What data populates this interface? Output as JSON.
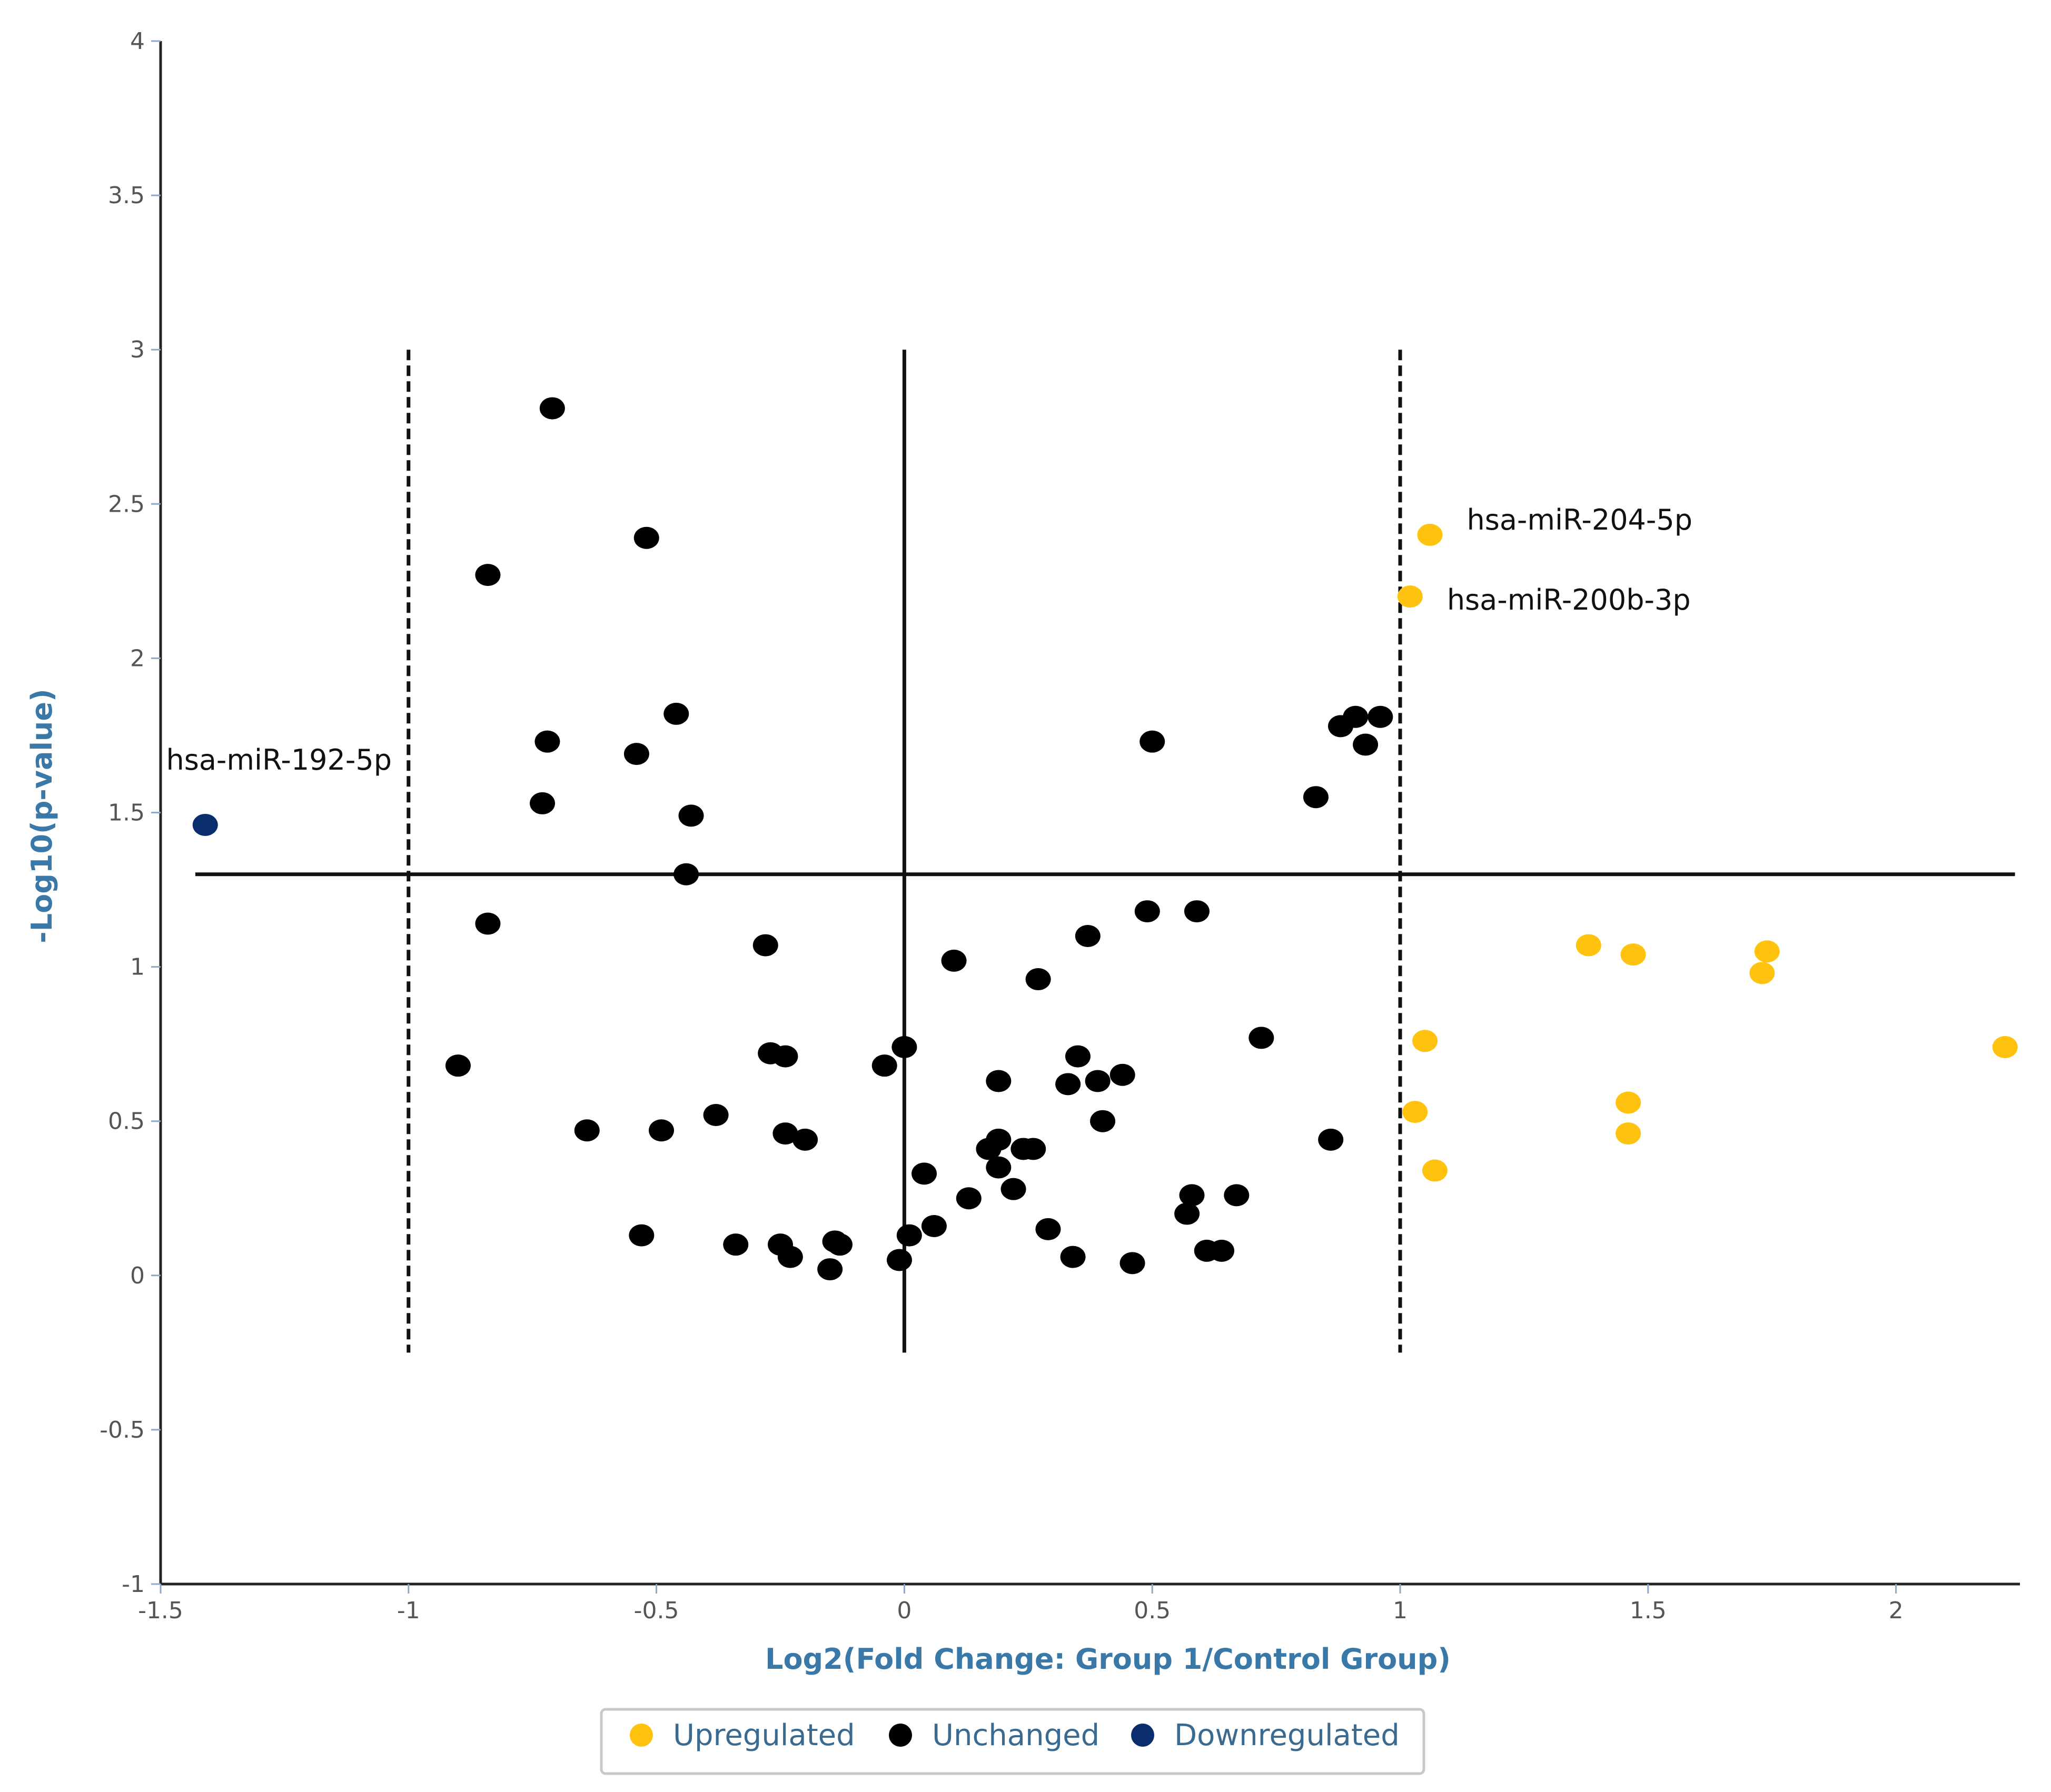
{
  "chart_data": {
    "type": "scatter",
    "xlabel": "Log2(Fold Change: Group 1/Control Group)",
    "ylabel": "-Log10(p-value)",
    "xlim": [
      -1.5,
      2.25
    ],
    "ylim": [
      -1,
      4
    ],
    "xticks": [
      -1.5,
      -1,
      -0.5,
      0,
      0.5,
      1,
      1.5,
      2
    ],
    "xtick_labels": [
      "-1.5",
      "-1",
      "-0.5",
      "0",
      "0.5",
      "1",
      "1.5",
      "2"
    ],
    "yticks": [
      -1,
      -0.5,
      0,
      0.5,
      1,
      1.5,
      2,
      2.5,
      3,
      3.5,
      4
    ],
    "ytick_labels": [
      "-1",
      "-0.5",
      "0",
      "0.5",
      "1",
      "1.5",
      "2",
      "2.5",
      "3",
      "3.5",
      "4"
    ],
    "grid": false,
    "legend_position": "bottom-center",
    "reference_lines": {
      "vertical_dashed": [
        -1,
        1
      ],
      "vertical_solid": [
        0
      ],
      "horizontal_solid": [
        1.3
      ],
      "vertical_y_range": [
        -0.25,
        3
      ]
    },
    "series": [
      {
        "name": "Upregulated",
        "color": "#FFC20E",
        "points": [
          [
            1.06,
            2.4
          ],
          [
            1.02,
            2.2
          ],
          [
            1.38,
            1.07
          ],
          [
            1.47,
            1.04
          ],
          [
            1.74,
            1.05
          ],
          [
            1.73,
            0.98
          ],
          [
            2.22,
            0.74
          ],
          [
            1.05,
            0.76
          ],
          [
            1.46,
            0.56
          ],
          [
            1.46,
            0.46
          ],
          [
            1.03,
            0.53
          ],
          [
            1.07,
            0.34
          ]
        ]
      },
      {
        "name": "Unchanged",
        "color": "#000000",
        "points": [
          [
            -0.71,
            2.81
          ],
          [
            -0.52,
            2.39
          ],
          [
            -0.84,
            2.27
          ],
          [
            -0.46,
            1.82
          ],
          [
            -0.72,
            1.73
          ],
          [
            -0.54,
            1.69
          ],
          [
            -0.73,
            1.53
          ],
          [
            -0.43,
            1.49
          ],
          [
            -0.44,
            1.3
          ],
          [
            -0.84,
            1.14
          ],
          [
            -0.28,
            1.07
          ],
          [
            -0.9,
            0.68
          ],
          [
            -0.27,
            0.72
          ],
          [
            -0.24,
            0.71
          ],
          [
            -0.64,
            0.47
          ],
          [
            -0.49,
            0.47
          ],
          [
            -0.38,
            0.52
          ],
          [
            -0.24,
            0.46
          ],
          [
            -0.2,
            0.44
          ],
          [
            -0.53,
            0.13
          ],
          [
            -0.34,
            0.1
          ],
          [
            -0.25,
            0.1
          ],
          [
            -0.23,
            0.06
          ],
          [
            -0.14,
            0.11
          ],
          [
            -0.13,
            0.1
          ],
          [
            -0.15,
            0.02
          ],
          [
            -0.04,
            0.68
          ],
          [
            0.0,
            0.74
          ],
          [
            -0.01,
            0.05
          ],
          [
            0.01,
            0.13
          ],
          [
            0.04,
            0.33
          ],
          [
            0.06,
            0.16
          ],
          [
            0.1,
            1.02
          ],
          [
            0.13,
            0.25
          ],
          [
            0.19,
            0.63
          ],
          [
            0.19,
            0.44
          ],
          [
            0.17,
            0.41
          ],
          [
            0.19,
            0.35
          ],
          [
            0.22,
            0.28
          ],
          [
            0.24,
            0.41
          ],
          [
            0.26,
            0.41
          ],
          [
            0.27,
            0.96
          ],
          [
            0.29,
            0.15
          ],
          [
            0.33,
            0.62
          ],
          [
            0.34,
            0.06
          ],
          [
            0.35,
            0.71
          ],
          [
            0.37,
            1.1
          ],
          [
            0.39,
            0.63
          ],
          [
            0.4,
            0.5
          ],
          [
            0.44,
            0.65
          ],
          [
            0.46,
            0.04
          ],
          [
            0.49,
            1.18
          ],
          [
            0.5,
            1.73
          ],
          [
            0.57,
            0.2
          ],
          [
            0.58,
            0.26
          ],
          [
            0.59,
            1.18
          ],
          [
            0.61,
            0.08
          ],
          [
            0.64,
            0.08
          ],
          [
            0.67,
            0.26
          ],
          [
            0.72,
            0.77
          ],
          [
            0.83,
            1.55
          ],
          [
            0.86,
            0.44
          ],
          [
            0.88,
            1.78
          ],
          [
            0.91,
            1.81
          ],
          [
            0.93,
            1.72
          ],
          [
            0.96,
            1.81
          ]
        ]
      },
      {
        "name": "Downregulated",
        "color": "#0A2D6E",
        "points": [
          [
            -1.41,
            1.46
          ]
        ]
      }
    ],
    "annotations": [
      {
        "text": "hsa-miR-204-5p",
        "x": 1.06,
        "y": 2.4
      },
      {
        "text": "hsa-miR-200b-3p",
        "x": 1.02,
        "y": 2.2
      },
      {
        "text": "hsa-miR-192-5p",
        "x": -1.41,
        "y": 1.46
      }
    ]
  }
}
